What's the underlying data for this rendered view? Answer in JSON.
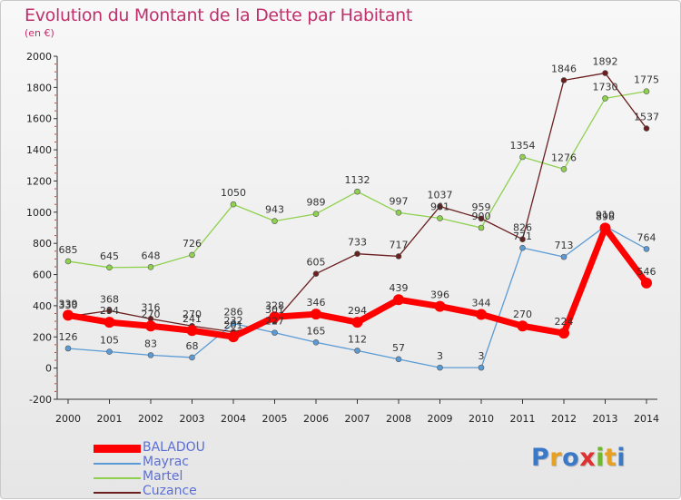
{
  "title": "Evolution du Montant de la Dette par Habitant",
  "subtitle": "(en €)",
  "logo": {
    "text": "Proxiti",
    "colors": [
      "#3a78c8",
      "#e8a020",
      "#3a78c8",
      "#e03030",
      "#70b830",
      "#e8a020",
      "#3a78c8"
    ]
  },
  "chart_data": {
    "type": "line",
    "title": "Evolution du Montant de la Dette par Habitant",
    "subtitle": "(en €)",
    "x": [
      2000,
      2001,
      2002,
      2003,
      2004,
      2005,
      2006,
      2007,
      2008,
      2009,
      2010,
      2011,
      2012,
      2013,
      2014
    ],
    "xlabel": "",
    "ylabel": "",
    "ylim": [
      -200,
      2000
    ],
    "yticks": [
      -200,
      0,
      200,
      400,
      600,
      800,
      1000,
      1200,
      1400,
      1600,
      1800,
      2000
    ],
    "grid": false,
    "legend_position": "bottom-left",
    "series": [
      {
        "name": "BALADOU",
        "color": "#ff0000",
        "values": [
          339,
          294,
          270,
          241,
          201,
          328,
          346,
          294,
          439,
          396,
          344,
          270,
          224,
          898,
          546
        ],
        "labels": [
          "339",
          "294",
          "270",
          "241",
          "201",
          "328",
          "346",
          "294",
          "439",
          "396",
          "344",
          "270",
          "224",
          "898",
          "546"
        ]
      },
      {
        "name": "Mayrac",
        "color": "#5b9bd5",
        "values": [
          126,
          105,
          83,
          68,
          286,
          227,
          165,
          112,
          57,
          3,
          3,
          771,
          713,
          910,
          764
        ],
        "labels": [
          "126",
          "105",
          "83",
          "68",
          "286",
          "227",
          "165",
          "112",
          "57",
          "3",
          "3",
          "771",
          "713",
          "910",
          "764"
        ]
      },
      {
        "name": "Martel",
        "color": "#8fd14f",
        "values": [
          685,
          645,
          648,
          726,
          1050,
          943,
          989,
          1132,
          997,
          961,
          900,
          1354,
          1276,
          1730,
          1775
        ],
        "labels": [
          "685",
          "645",
          "648",
          "726",
          "1050",
          "943",
          "989",
          "1132",
          "997",
          "961",
          "900",
          "1354",
          "1276",
          "1730",
          "1775"
        ]
      },
      {
        "name": "Cuzance",
        "color": "#6b1f1f",
        "values": [
          330,
          368,
          316,
          270,
          232,
          301,
          605,
          733,
          717,
          1037,
          959,
          826,
          1846,
          1892,
          1537
        ],
        "labels": [
          "330",
          "368",
          "316",
          "270",
          "232",
          "301",
          "605",
          "733",
          "717",
          "1037",
          "959",
          "826",
          "1846",
          "1892",
          "1537"
        ]
      }
    ]
  }
}
